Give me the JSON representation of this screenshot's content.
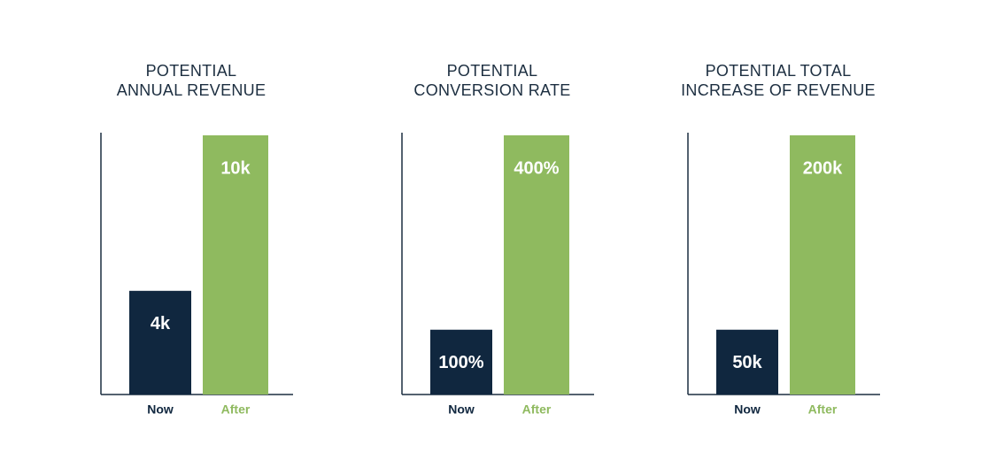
{
  "chart_data": [
    {
      "type": "bar",
      "title": [
        "POTENTIAL",
        "ANNUAL REVENUE"
      ],
      "categories": [
        "Now",
        "After"
      ],
      "values": [
        4000,
        10000
      ],
      "value_labels": [
        "4k",
        "10k"
      ],
      "colors": [
        "#10273f",
        "#8fba5f"
      ]
    },
    {
      "type": "bar",
      "title": [
        "POTENTIAL",
        "CONVERSION RATE"
      ],
      "categories": [
        "Now",
        "After"
      ],
      "values": [
        100,
        400
      ],
      "value_labels": [
        "100%",
        "400%"
      ],
      "colors": [
        "#10273f",
        "#8fba5f"
      ]
    },
    {
      "type": "bar",
      "title": [
        "POTENTIAL TOTAL",
        "INCREASE OF REVENUE"
      ],
      "categories": [
        "Now",
        "After"
      ],
      "values": [
        50000,
        200000
      ],
      "value_labels": [
        "50k",
        "200k"
      ],
      "colors": [
        "#10273f",
        "#8fba5f"
      ]
    }
  ]
}
